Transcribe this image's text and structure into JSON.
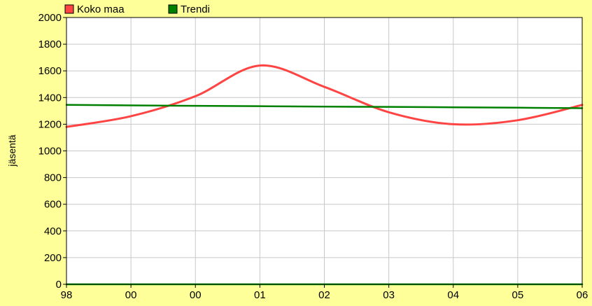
{
  "chart_data": {
    "type": "line",
    "xlabel": "",
    "ylabel": "jäsentä",
    "categories": [
      "98",
      "00",
      "00",
      "01",
      "02",
      "03",
      "04",
      "05",
      "06"
    ],
    "ylim": [
      0,
      2000
    ],
    "yticks": [
      0,
      200,
      400,
      600,
      800,
      1000,
      1200,
      1400,
      1600,
      1800,
      2000
    ],
    "grid": true,
    "legend": "top-left",
    "series": [
      {
        "name": "Koko maa",
        "color": "#ff4444",
        "values": [
          1180,
          1260,
          1410,
          1640,
          1480,
          1290,
          1200,
          1230,
          1345
        ]
      },
      {
        "name": "Trendi",
        "color": "#008000",
        "values": [
          1345,
          1341,
          1338,
          1335,
          1332,
          1330,
          1327,
          1324,
          1320
        ]
      },
      {
        "name": "",
        "color": "#00a000",
        "values": [
          0,
          0,
          0,
          0,
          0,
          0,
          0,
          0,
          0
        ]
      }
    ]
  }
}
